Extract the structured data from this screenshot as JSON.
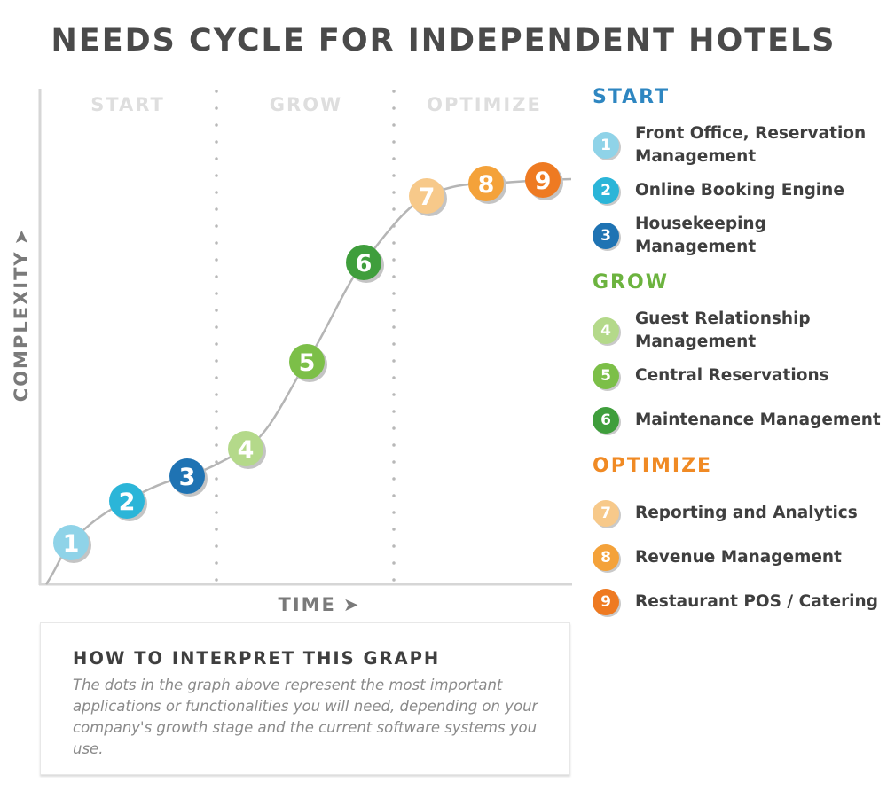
{
  "title": "NEEDS CYCLE FOR INDEPENDENT HOTELS",
  "graph": {
    "phases": [
      "START",
      "GROW",
      "OPTIMIZE"
    ],
    "y_axis_label": "COMPLEXITY",
    "x_axis_label": "TIME",
    "arrow_glyph": "➤"
  },
  "nodes": [
    {
      "num": "1",
      "phase": "START"
    },
    {
      "num": "2",
      "phase": "START"
    },
    {
      "num": "3",
      "phase": "START"
    },
    {
      "num": "4",
      "phase": "GROW"
    },
    {
      "num": "5",
      "phase": "GROW"
    },
    {
      "num": "6",
      "phase": "GROW"
    },
    {
      "num": "7",
      "phase": "OPTIMIZE"
    },
    {
      "num": "8",
      "phase": "OPTIMIZE"
    },
    {
      "num": "9",
      "phase": "OPTIMIZE"
    }
  ],
  "legend": [
    {
      "title": "START",
      "color": "#2e86c1",
      "items": [
        {
          "num": "1",
          "label": "Front Office, Reservation Management",
          "color": "#8fd3e8"
        },
        {
          "num": "2",
          "label": "Online Booking Engine",
          "color": "#2bb5d8"
        },
        {
          "num": "3",
          "label": "Housekeeping Management",
          "color": "#1f73b3"
        }
      ]
    },
    {
      "title": "GROW",
      "color": "#6cb33f",
      "items": [
        {
          "num": "4",
          "label": "Guest Relationship Management",
          "color": "#b4d98a"
        },
        {
          "num": "5",
          "label": "Central Reservations",
          "color": "#7cbf48"
        },
        {
          "num": "6",
          "label": "Maintenance Management",
          "color": "#3f9e3c"
        }
      ]
    },
    {
      "title": "OPTIMIZE",
      "color": "#f08a24",
      "items": [
        {
          "num": "7",
          "label": "Reporting and Analytics",
          "color": "#f7c98a"
        },
        {
          "num": "8",
          "label": "Revenue Management",
          "color": "#f4a23a"
        },
        {
          "num": "9",
          "label": "Restaurant POS / Catering",
          "color": "#ee7a22"
        }
      ]
    }
  ],
  "interpret": {
    "title": "HOW TO INTERPRET THIS GRAPH",
    "text": "The dots in the graph above represent the most important applications or functionalities you will need, depending on your company's growth stage and the current software systems you use."
  }
}
